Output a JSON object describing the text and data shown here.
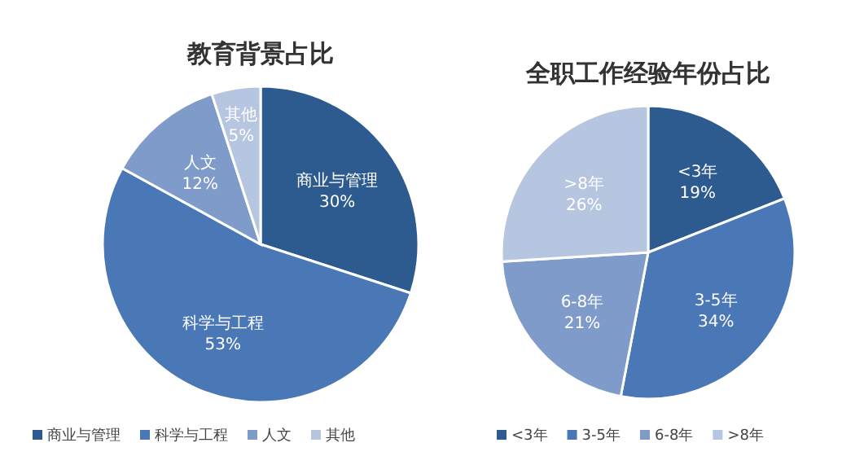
{
  "chart_data": [
    {
      "type": "pie",
      "title": "教育背景占比",
      "categories": [
        "商业与管理",
        "科学与工程",
        "人文",
        "其他"
      ],
      "values": [
        30,
        53,
        12,
        5
      ],
      "value_labels": [
        "30%",
        "53%",
        "12%",
        "5%"
      ],
      "colors": [
        "#2e5b8f",
        "#4a77b6",
        "#7f9bc9",
        "#b7c6e0"
      ],
      "legend": "bottom"
    },
    {
      "type": "pie",
      "title": "全职工作经验年份占比",
      "categories": [
        "<3年",
        "3-5年",
        "6-8年",
        ">8年"
      ],
      "values": [
        19,
        34,
        21,
        26
      ],
      "value_labels": [
        "19%",
        "34%",
        "21%",
        "26%"
      ],
      "colors": [
        "#2e5b8f",
        "#4a77b6",
        "#7f9bc9",
        "#b7c6e0"
      ],
      "legend": "bottom"
    }
  ]
}
